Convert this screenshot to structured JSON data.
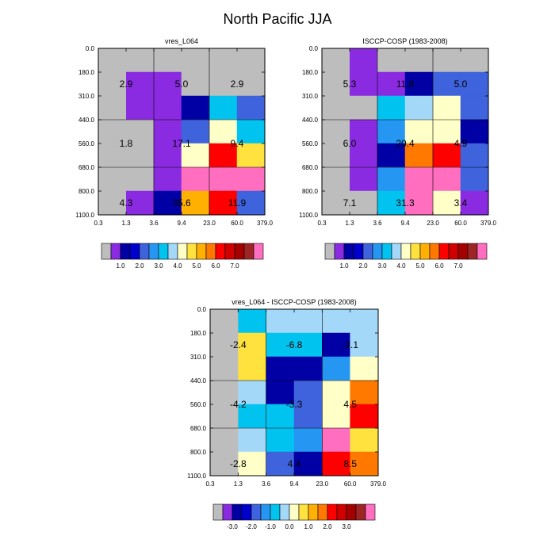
{
  "main_title": "North Pacific JJA",
  "colors": [
    "#bdbdbd",
    "#8a2be2",
    "#0000a5",
    "#0000cd",
    "#3f63dc",
    "#2596f2",
    "#00c4ef",
    "#a4d8f8",
    "#ffffc8",
    "#ffe23d",
    "#ffb000",
    "#ff7800",
    "#ff0000",
    "#d00000",
    "#a50000",
    "#9e2525",
    "#ff6ebf"
  ],
  "chart_data": [
    {
      "type": "heatmap",
      "title": "vres_L064",
      "x_tick_labels": [
        "0.3",
        "1.3",
        "3.6",
        "9.4",
        "23.0",
        "60.0",
        "379.0"
      ],
      "y_tick_labels": [
        "0.0",
        "180.0",
        "310.0",
        "440.0",
        "560.0",
        "680.0",
        "800.0",
        "1100.0"
      ],
      "cell_values": [
        [
          0,
          0,
          0,
          0,
          0
        ],
        [
          1,
          1,
          0,
          0,
          0
        ],
        [
          1,
          1,
          2,
          6,
          4
        ],
        [
          0,
          1,
          4,
          8,
          6
        ],
        [
          0,
          1,
          8,
          12,
          9
        ],
        [
          0,
          1,
          16,
          16,
          16
        ],
        [
          1,
          2,
          10,
          12,
          4
        ]
      ],
      "labels": [
        {
          "row": 0,
          "col": 0,
          "text": "2.9"
        },
        {
          "row": 0,
          "col": 1,
          "text": "5.0"
        },
        {
          "row": 0,
          "col": 2,
          "text": "2.9"
        },
        {
          "row": 1,
          "col": 0,
          "text": "1.8"
        },
        {
          "row": 1,
          "col": 1,
          "text": "17.1"
        },
        {
          "row": 1,
          "col": 2,
          "text": "9.4"
        },
        {
          "row": 2,
          "col": 0,
          "text": "4.3"
        },
        {
          "row": 2,
          "col": 1,
          "text": "35.6"
        },
        {
          "row": 2,
          "col": 2,
          "text": "11.9"
        }
      ],
      "colorbar_labels": [
        "1.0",
        "2.0",
        "3.0",
        "4.0",
        "5.0",
        "6.0",
        "7.0"
      ]
    },
    {
      "type": "heatmap",
      "title": "ISCCP-COSP (1983-2008)",
      "x_tick_labels": [
        "0.3",
        "1.3",
        "3.6",
        "9.4",
        "23.0",
        "60.0",
        "379.0"
      ],
      "y_tick_labels": [
        "0.0",
        "180.0",
        "310.0",
        "440.0",
        "560.0",
        "680.0",
        "800.0",
        "1100.0"
      ],
      "cell_values": [
        [
          1,
          0,
          0,
          0,
          0
        ],
        [
          1,
          1,
          2,
          4,
          4
        ],
        [
          0,
          6,
          7,
          8,
          4
        ],
        [
          1,
          5,
          8,
          8,
          2
        ],
        [
          1,
          2,
          11,
          12,
          4
        ],
        [
          1,
          5,
          16,
          16,
          4
        ],
        [
          0,
          6,
          16,
          8,
          1
        ]
      ],
      "labels": [
        {
          "row": 0,
          "col": 0,
          "text": "5.3"
        },
        {
          "row": 0,
          "col": 1,
          "text": "11.8"
        },
        {
          "row": 0,
          "col": 2,
          "text": "5.0"
        },
        {
          "row": 1,
          "col": 0,
          "text": "6.0"
        },
        {
          "row": 1,
          "col": 1,
          "text": "20.4"
        },
        {
          "row": 1,
          "col": 2,
          "text": "4.9"
        },
        {
          "row": 2,
          "col": 0,
          "text": "7.1"
        },
        {
          "row": 2,
          "col": 1,
          "text": "31.3"
        },
        {
          "row": 2,
          "col": 2,
          "text": "3.4"
        }
      ],
      "colorbar_labels": [
        "1.0",
        "2.0",
        "3.0",
        "4.0",
        "5.0",
        "6.0",
        "7.0"
      ]
    },
    {
      "type": "heatmap",
      "title": "vres_L064 - ISCCP-COSP (1983-2008)",
      "x_tick_labels": [
        "0.3",
        "1.3",
        "3.6",
        "9.4",
        "23.0",
        "60.0",
        "379.0"
      ],
      "y_tick_labels": [
        "0.0",
        "180.0",
        "310.0",
        "440.0",
        "560.0",
        "680.0",
        "800.0",
        "1100.0"
      ],
      "cell_values": [
        [
          6,
          7,
          7,
          7,
          7
        ],
        [
          9,
          6,
          6,
          2,
          7
        ],
        [
          9,
          2,
          2,
          5,
          8
        ],
        [
          7,
          2,
          4,
          8,
          11
        ],
        [
          6,
          6,
          4,
          8,
          12
        ],
        [
          7,
          6,
          5,
          16,
          9
        ],
        [
          8,
          4,
          2,
          12,
          11
        ]
      ],
      "labels": [
        {
          "row": 0,
          "col": 0,
          "text": "-2.4"
        },
        {
          "row": 0,
          "col": 1,
          "text": "-6.8"
        },
        {
          "row": 0,
          "col": 2,
          "text": "-2.1"
        },
        {
          "row": 1,
          "col": 0,
          "text": "-4.2"
        },
        {
          "row": 1,
          "col": 1,
          "text": "-3.3"
        },
        {
          "row": 1,
          "col": 2,
          "text": "4.5"
        },
        {
          "row": 2,
          "col": 0,
          "text": "-2.8"
        },
        {
          "row": 2,
          "col": 1,
          "text": "4.4"
        },
        {
          "row": 2,
          "col": 2,
          "text": "8.5"
        }
      ],
      "colorbar_labels": [
        "-3.0",
        "-2.0",
        "-1.0",
        "0.0",
        "1.0",
        "2.0",
        "3.0"
      ]
    }
  ]
}
